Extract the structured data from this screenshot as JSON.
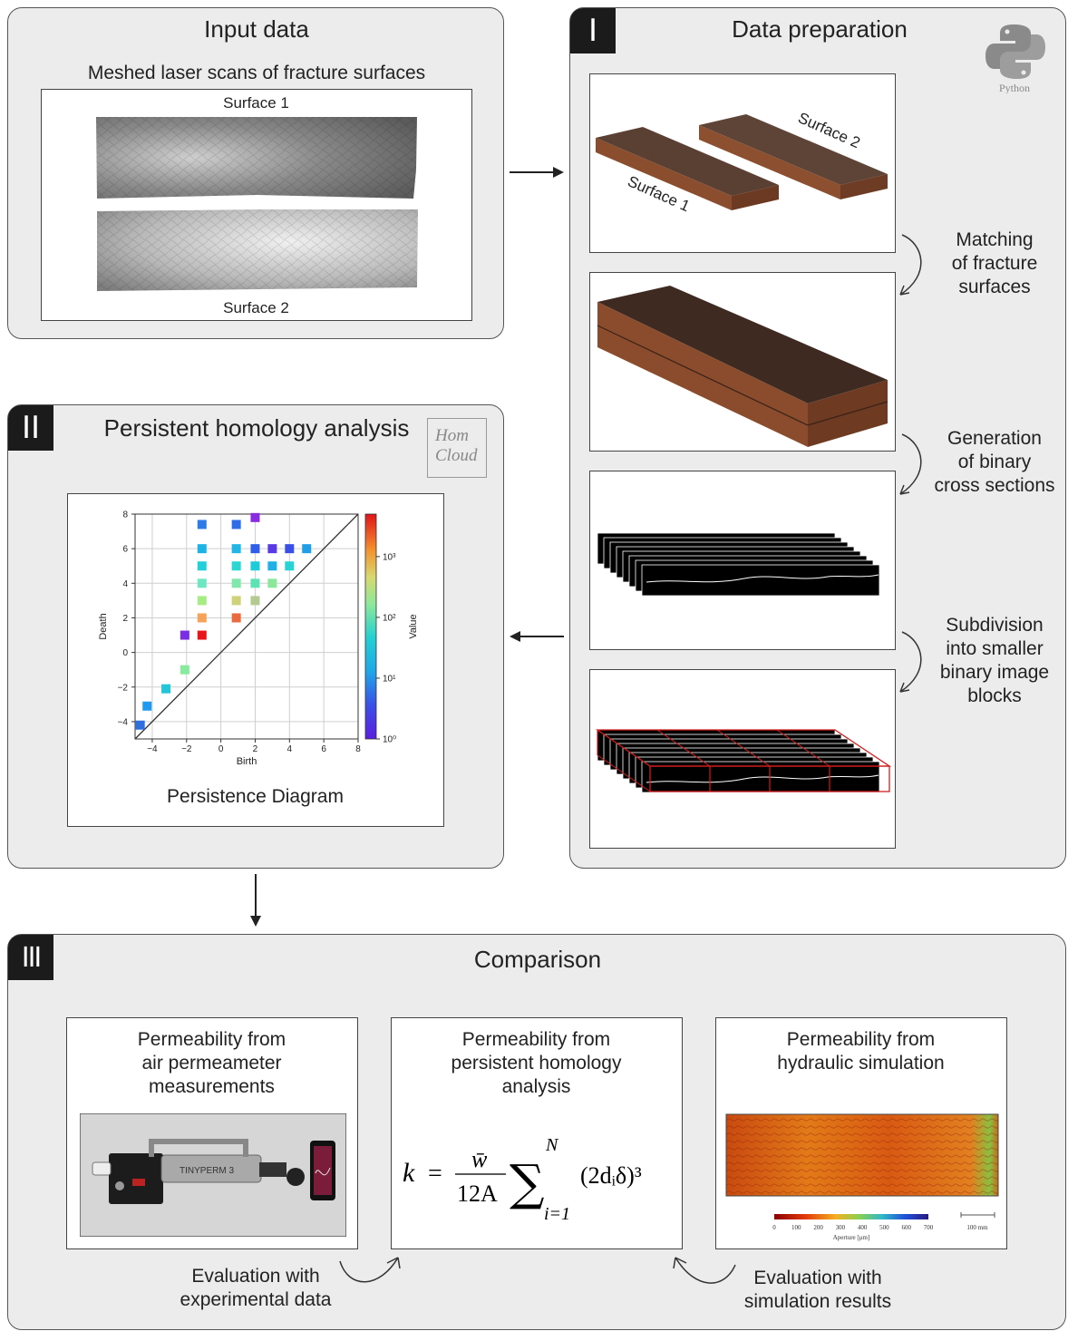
{
  "input_panel": {
    "title": "Input data",
    "subtitle": "Meshed laser scans of fracture surfaces",
    "surface1_label": "Surface 1",
    "surface2_label": "Surface 2"
  },
  "prep_panel": {
    "badge": "I",
    "title": "Data preparation",
    "python_logo_label": "Python",
    "render_surface1": "Surface 1",
    "render_surface2": "Surface 2",
    "step1": [
      "Matching",
      "of fracture",
      "surfaces"
    ],
    "step2": [
      "Generation",
      "of binary",
      "cross sections"
    ],
    "step3": [
      "Subdivision",
      "into smaller",
      "binary image",
      "blocks"
    ]
  },
  "ph_panel": {
    "badge": "II",
    "title": "Persistent homology analysis",
    "logo_line1": "Hom",
    "logo_line2": "Cloud",
    "diagram_caption": "Persistence Diagram"
  },
  "chart_data": {
    "type": "scatter",
    "xlabel": "Birth",
    "ylabel": "Death",
    "xlim": [
      -5,
      8
    ],
    "ylim": [
      -5,
      8
    ],
    "xticks": [
      -4,
      -2,
      0,
      2,
      4,
      6,
      8
    ],
    "yticks": [
      -4,
      -2,
      0,
      2,
      4,
      6,
      8
    ],
    "grid": true,
    "diagonal": true,
    "colorbar": {
      "label": "Value",
      "scale": "log",
      "ticks": [
        "10⁰",
        "10¹",
        "10²",
        "10³"
      ],
      "range": [
        1,
        5000
      ]
    },
    "points": [
      {
        "x": -4.7,
        "y": -4.2,
        "c": "#2f6fe0"
      },
      {
        "x": -4.3,
        "y": -3.1,
        "c": "#1e9af0"
      },
      {
        "x": -3.2,
        "y": -2.1,
        "c": "#23c6d6"
      },
      {
        "x": -2.1,
        "y": -1.0,
        "c": "#86eb9c"
      },
      {
        "x": -2.1,
        "y": 1.0,
        "c": "#7a2ee8"
      },
      {
        "x": -1.1,
        "y": 1.0,
        "c": "#e8141b"
      },
      {
        "x": -1.1,
        "y": 2.0,
        "c": "#f5a35b"
      },
      {
        "x": -1.1,
        "y": 3.0,
        "c": "#a7eb87"
      },
      {
        "x": -1.1,
        "y": 4.0,
        "c": "#6ee6c2"
      },
      {
        "x": -1.1,
        "y": 5.0,
        "c": "#24d0d8"
      },
      {
        "x": -1.1,
        "y": 6.0,
        "c": "#1fb2e6"
      },
      {
        "x": -1.1,
        "y": 7.4,
        "c": "#2e7be8"
      },
      {
        "x": 0.9,
        "y": 2.0,
        "c": "#ea6a3f"
      },
      {
        "x": 0.9,
        "y": 3.0,
        "c": "#cfd27a"
      },
      {
        "x": 0.9,
        "y": 4.0,
        "c": "#7fe8aa"
      },
      {
        "x": 0.9,
        "y": 5.0,
        "c": "#2cd6d2"
      },
      {
        "x": 0.9,
        "y": 6.0,
        "c": "#22b6e6"
      },
      {
        "x": 0.9,
        "y": 7.4,
        "c": "#2e6ce8"
      },
      {
        "x": 2.0,
        "y": 3.0,
        "c": "#b5c992"
      },
      {
        "x": 2.0,
        "y": 4.0,
        "c": "#5de2b6"
      },
      {
        "x": 2.0,
        "y": 5.0,
        "c": "#1ecbd9"
      },
      {
        "x": 2.0,
        "y": 6.0,
        "c": "#2f5fe8"
      },
      {
        "x": 2.0,
        "y": 7.8,
        "c": "#8a2be2"
      },
      {
        "x": 3.0,
        "y": 4.0,
        "c": "#8be89a"
      },
      {
        "x": 3.0,
        "y": 5.0,
        "c": "#1fb0e8"
      },
      {
        "x": 3.0,
        "y": 6.0,
        "c": "#5a3ae6"
      },
      {
        "x": 4.0,
        "y": 5.0,
        "c": "#2ad3d3"
      },
      {
        "x": 4.0,
        "y": 6.0,
        "c": "#3a4fe6"
      },
      {
        "x": 5.0,
        "y": 6.0,
        "c": "#209ee8"
      }
    ]
  },
  "comparison_panel": {
    "badge": "III",
    "title": "Comparison",
    "card1": [
      "Permeability from",
      "air permeameter",
      "measurements"
    ],
    "card2": [
      "Permeability from",
      "persistent homology",
      "analysis"
    ],
    "card3": [
      "Permeability from",
      "hydraulic simulation"
    ],
    "device_label": "TINYPERM 3",
    "formula": {
      "lhs": "k",
      "numerator": "w̄",
      "denominator": "12A",
      "sum_upper": "N",
      "sum_lower": "i=1",
      "term": "(2dᵢδ)³"
    },
    "sim_colorbar": {
      "ticks": [
        "0",
        "100",
        "200",
        "300",
        "400",
        "500",
        "600",
        "700"
      ],
      "label": "Aperture [μm]",
      "scale_bar": "100 mm"
    },
    "eval1": [
      "Evaluation with",
      "experimental data"
    ],
    "eval2": [
      "Evaluation with",
      "simulation results"
    ]
  }
}
